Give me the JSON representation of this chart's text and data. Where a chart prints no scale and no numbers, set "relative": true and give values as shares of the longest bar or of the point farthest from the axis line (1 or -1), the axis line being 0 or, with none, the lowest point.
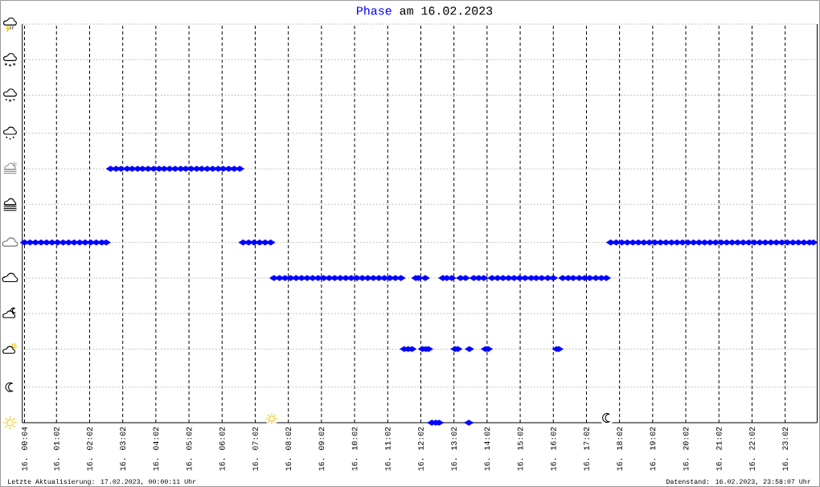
{
  "chart_data": {
    "type": "scatter",
    "title": "am 16.02.2023",
    "annotations": [
      "Letzte Aktualisierung: 17.02.2023, 00:00:11 Uhr",
      "Datenstand: 16.02.2023, 23:58:07 Uhr"
    ],
    "relative": true,
    "series": [
      {
        "name": "Phase",
        "color": "#0000ff",
        "x": [
          "2023-02-16T00:04",
          "2023-02-16T00:14",
          "2023-02-16T00:24",
          "2023-02-16T00:34",
          "2023-02-16T00:44",
          "2023-02-16T00:54",
          "2023-02-16T01:04",
          "2023-02-16T01:14",
          "2023-02-16T01:24",
          "2023-02-16T01:34",
          "2023-02-16T01:44",
          "2023-02-16T01:54",
          "2023-02-16T02:04",
          "2023-02-16T02:14",
          "2023-02-16T02:24",
          "2023-02-16T02:32",
          "2023-02-16T02:40",
          "2023-02-16T02:50",
          "2023-02-16T02:59",
          "2023-02-16T03:10",
          "2023-02-16T03:19",
          "2023-02-16T03:29",
          "2023-02-16T03:38",
          "2023-02-16T03:48",
          "2023-02-16T03:58",
          "2023-02-16T04:08",
          "2023-02-16T04:17",
          "2023-02-16T04:27",
          "2023-02-16T04:37",
          "2023-02-16T04:47",
          "2023-02-16T04:56",
          "2023-02-16T05:06",
          "2023-02-16T05:16",
          "2023-02-16T05:25",
          "2023-02-16T05:35",
          "2023-02-16T05:45",
          "2023-02-16T05:55",
          "2023-02-16T06:04",
          "2023-02-16T06:14",
          "2023-02-16T06:24",
          "2023-02-16T06:34",
          "2023-02-16T06:40",
          "2023-02-16T06:50",
          "2023-02-16T07:00",
          "2023-02-16T07:10",
          "2023-02-16T07:20",
          "2023-02-16T07:30",
          "2023-02-16T07:36",
          "2023-02-16T07:46",
          "2023-02-16T07:56",
          "2023-02-16T08:06",
          "2023-02-16T08:16",
          "2023-02-16T08:26",
          "2023-02-16T08:36",
          "2023-02-16T08:46",
          "2023-02-16T08:56",
          "2023-02-16T09:06",
          "2023-02-16T09:16",
          "2023-02-16T09:26",
          "2023-02-16T09:36",
          "2023-02-16T09:46",
          "2023-02-16T09:56",
          "2023-02-16T10:06",
          "2023-02-16T10:16",
          "2023-02-16T10:26",
          "2023-02-16T10:36",
          "2023-02-16T10:46",
          "2023-02-16T10:56",
          "2023-02-16T11:06",
          "2023-02-16T11:16",
          "2023-02-16T11:26",
          "2023-02-16T11:32",
          "2023-02-16T11:39",
          "2023-02-16T11:46",
          "2023-02-16T11:53",
          "2023-02-16T11:58",
          "2023-02-16T12:05",
          "2023-02-16T12:10",
          "2023-02-16T12:11",
          "2023-02-16T12:16",
          "2023-02-16T12:22",
          "2023-02-16T12:29",
          "2023-02-16T12:35",
          "2023-02-16T12:42",
          "2023-02-16T12:49",
          "2023-02-16T12:58",
          "2023-02-16T13:04",
          "2023-02-16T13:09",
          "2023-02-16T13:14",
          "2023-02-16T13:23",
          "2023-02-16T13:29",
          "2023-02-16T13:30",
          "2023-02-16T13:38",
          "2023-02-16T13:47",
          "2023-02-16T13:56",
          "2023-02-16T13:59",
          "2023-02-16T14:04",
          "2023-02-16T14:11",
          "2023-02-16T14:21",
          "2023-02-16T14:31",
          "2023-02-16T14:41",
          "2023-02-16T14:51",
          "2023-02-16T15:01",
          "2023-02-16T15:11",
          "2023-02-16T15:22",
          "2023-02-16T15:31",
          "2023-02-16T15:41",
          "2023-02-16T15:52",
          "2023-02-16T16:02",
          "2023-02-16T16:08",
          "2023-02-16T16:12",
          "2023-02-16T16:19",
          "2023-02-16T16:29",
          "2023-02-16T16:38",
          "2023-02-16T16:49",
          "2023-02-16T16:59",
          "2023-02-16T17:08",
          "2023-02-16T17:19",
          "2023-02-16T17:29",
          "2023-02-16T17:38",
          "2023-02-16T17:46",
          "2023-02-16T17:56",
          "2023-02-16T18:06",
          "2023-02-16T18:16",
          "2023-02-16T18:26",
          "2023-02-16T18:36",
          "2023-02-16T18:46",
          "2023-02-16T18:56",
          "2023-02-16T19:06",
          "2023-02-16T19:16",
          "2023-02-16T19:26",
          "2023-02-16T19:36",
          "2023-02-16T19:46",
          "2023-02-16T19:56",
          "2023-02-16T20:06",
          "2023-02-16T20:16",
          "2023-02-16T20:26",
          "2023-02-16T20:36",
          "2023-02-16T20:46",
          "2023-02-16T20:56",
          "2023-02-16T21:06",
          "2023-02-16T21:16",
          "2023-02-16T21:26",
          "2023-02-16T21:36",
          "2023-02-16T21:46",
          "2023-02-16T21:56",
          "2023-02-16T22:06",
          "2023-02-16T22:16",
          "2023-02-16T22:26",
          "2023-02-16T22:36",
          "2023-02-16T22:46",
          "2023-02-16T22:56",
          "2023-02-16T23:06",
          "2023-02-16T23:16",
          "2023-02-16T23:26",
          "2023-02-16T23:36",
          "2023-02-16T23:46",
          "2023-02-16T23:53"
        ],
        "values": [
          0.71,
          0.71,
          0.71,
          0.71,
          0.71,
          0.71,
          0.71,
          0.71,
          0.71,
          0.71,
          0.71,
          0.71,
          0.71,
          0.71,
          0.71,
          0.71,
          1,
          1,
          1,
          1,
          1,
          1,
          1,
          1,
          1,
          1,
          1,
          1,
          1,
          1,
          1,
          1,
          1,
          1,
          1,
          1,
          1,
          1,
          1,
          1,
          1,
          0.71,
          0.71,
          0.71,
          0.71,
          0.71,
          0.71,
          0.57,
          0.57,
          0.57,
          0.57,
          0.57,
          0.57,
          0.57,
          0.57,
          0.57,
          0.57,
          0.57,
          0.57,
          0.57,
          0.57,
          0.57,
          0.57,
          0.57,
          0.57,
          0.57,
          0.57,
          0.57,
          0.57,
          0.57,
          0.57,
          0.29,
          0.29,
          0.29,
          0.57,
          0.57,
          0.29,
          0.57,
          0.29,
          0.29,
          0,
          0,
          0,
          0.57,
          0.57,
          0.57,
          0.29,
          0.29,
          0.57,
          0.57,
          0,
          0.29,
          0.57,
          0.57,
          0.57,
          0.29,
          0.29,
          0.57,
          0.57,
          0.57,
          0.57,
          0.57,
          0.57,
          0.57,
          0.57,
          0.57,
          0.57,
          0.57,
          0.57,
          0.29,
          0.29,
          0.57,
          0.57,
          0.57,
          0.57,
          0.57,
          0.57,
          0.57,
          0.57,
          0.57,
          0.71,
          0.71,
          0.71,
          0.71,
          0.71,
          0.71,
          0.71,
          0.71,
          0.71,
          0.71,
          0.71,
          0.71,
          0.71,
          0.71,
          0.71,
          0.71,
          0.71,
          0.71,
          0.71,
          0.71,
          0.71,
          0.71,
          0.71,
          0.71,
          0.71,
          0.71,
          0.71,
          0.71,
          0.71,
          0.71,
          0.71,
          0.71,
          0.71,
          0.71,
          0.71,
          0.71,
          0.71,
          0.71
        ]
      }
    ],
    "xlim": [
      "2023-02-16T00:00",
      "2023-02-17T00:00"
    ],
    "xticks": [
      {
        "value": "2023-02-16T00:04",
        "label": "16. 00:04"
      },
      {
        "value": "2023-02-16T01:02",
        "label": "16. 01:02"
      },
      {
        "value": "2023-02-16T02:02",
        "label": "16. 02:02"
      },
      {
        "value": "2023-02-16T03:02",
        "label": "16. 03:02"
      },
      {
        "value": "2023-02-16T04:02",
        "label": "16. 04:02"
      },
      {
        "value": "2023-02-16T05:02",
        "label": "16. 05:02"
      },
      {
        "value": "2023-02-16T06:02",
        "label": "16. 06:02"
      },
      {
        "value": "2023-02-16T07:02",
        "label": "16. 07:02"
      },
      {
        "value": "2023-02-16T08:02",
        "label": "16. 08:02"
      },
      {
        "value": "2023-02-16T09:02",
        "label": "16. 09:02"
      },
      {
        "value": "2023-02-16T10:02",
        "label": "16. 10:02"
      },
      {
        "value": "2023-02-16T11:02",
        "label": "16. 11:02"
      },
      {
        "value": "2023-02-16T12:02",
        "label": "16. 12:02"
      },
      {
        "value": "2023-02-16T13:02",
        "label": "16. 13:02"
      },
      {
        "value": "2023-02-16T14:02",
        "label": "16. 14:02"
      },
      {
        "value": "2023-02-16T15:02",
        "label": "16. 15:02"
      },
      {
        "value": "2023-02-16T16:02",
        "label": "16. 16:02"
      },
      {
        "value": "2023-02-16T17:02",
        "label": "16. 17:02"
      },
      {
        "value": "2023-02-16T18:02",
        "label": "16. 18:02"
      },
      {
        "value": "2023-02-16T19:02",
        "label": "16. 19:02"
      },
      {
        "value": "2023-02-16T20:02",
        "label": "16. 20:02"
      },
      {
        "value": "2023-02-16T21:02",
        "label": "16. 21:02"
      },
      {
        "value": "2023-02-16T22:02",
        "label": "16. 22:02"
      },
      {
        "value": "2023-02-16T23:02",
        "label": "16. 23:02"
      }
    ],
    "ref_lines": [
      {
        "axis": "y",
        "value": 0.14,
        "label": null,
        "color": "#bfbfbf",
        "line_style": "dotted"
      },
      {
        "axis": "y",
        "value": 0.29,
        "label": null,
        "color": "#bfbfbf",
        "line_style": "dotted"
      },
      {
        "axis": "y",
        "value": 0.43,
        "label": null,
        "color": "#bfbfbf",
        "line_style": "dotted"
      },
      {
        "axis": "y",
        "value": 0.57,
        "label": null,
        "color": "#bfbfbf",
        "line_style": "dotted"
      },
      {
        "axis": "y",
        "value": 0.71,
        "label": null,
        "color": "#bfbfbf",
        "line_style": "dotted"
      },
      {
        "axis": "y",
        "value": 0.86,
        "label": null,
        "color": "#bfbfbf",
        "line_style": "dotted"
      },
      {
        "axis": "y",
        "value": 1,
        "label": null,
        "color": "#bfbfbf",
        "line_style": "dotted"
      },
      {
        "axis": "y",
        "value": 1.14,
        "label": null,
        "color": "#bfbfbf",
        "line_style": "dotted"
      },
      {
        "axis": "y",
        "value": 1.29,
        "label": null,
        "color": "#bfbfbf",
        "line_style": "dotted"
      },
      {
        "axis": "y",
        "value": 1.43,
        "label": null,
        "color": "#bfbfbf",
        "line_style": "dotted"
      },
      {
        "axis": "y",
        "value": 1.57,
        "label": null,
        "color": "#bfbfbf",
        "line_style": "dotted"
      }
    ],
    "grid": "x",
    "marker": "diamond"
  }
}
